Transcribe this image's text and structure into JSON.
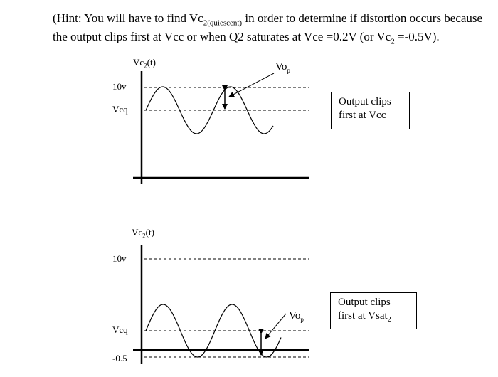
{
  "hint": {
    "prefix": "(Hint: You will have to find Vc",
    "sub": "2(quiescent)",
    "mid": " in order to determine if distortion occurs because the output clips first at Vcc or when Q2 saturates at Vce =0.2V (or Vc",
    "sub2": "2",
    "suffix": " =-0.5V)."
  },
  "graph_top": {
    "y_axis_label": "Vc",
    "y_axis_label_sub": "2",
    "y_axis_label_suffix": "(t)",
    "level_10v": "10v",
    "level_vcq": "Vcq",
    "vop_label": "Vo",
    "vop_sub": "p",
    "box_line1": "Output clips",
    "box_line2": "first at Vcc"
  },
  "graph_bottom": {
    "y_axis_label": "Vc",
    "y_axis_label_sub": "2",
    "y_axis_label_suffix": "(t)",
    "level_10v": "10v",
    "level_vcq": "Vcq",
    "level_neg": "-0.5",
    "vop_label": "Vo",
    "vop_sub": "p",
    "box_line1": "Output clips",
    "box_line2": "first at Vsat",
    "box_line2_sub": "2"
  }
}
